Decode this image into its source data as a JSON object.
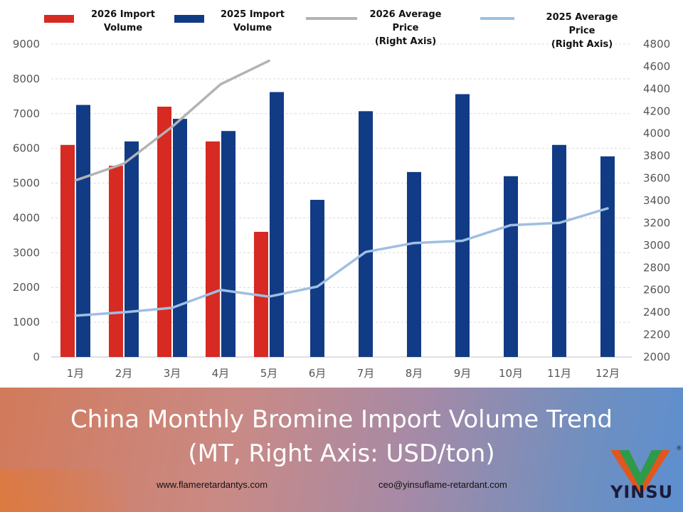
{
  "legend": [
    {
      "label": "2026 Import\nVolume",
      "color": "#d62a22",
      "kind": "bar"
    },
    {
      "label": "2025 Import\nVolume",
      "color": "#123b86",
      "kind": "bar"
    },
    {
      "label": "2026 Average Price\n(Right Axis)",
      "color": "#b3b3b3",
      "kind": "line"
    },
    {
      "label": "2025 Average Price\n(Right Axis)",
      "color": "#9fbfe3",
      "kind": "line"
    }
  ],
  "chart_data": {
    "type": "bar",
    "categories": [
      "1月",
      "2月",
      "3月",
      "4月",
      "5月",
      "6月",
      "7月",
      "8月",
      "9月",
      "10月",
      "11月",
      "12月"
    ],
    "y_left_ticks": [
      "0",
      "1000",
      "2000",
      "3000",
      "4000",
      "5000",
      "6000",
      "7000",
      "8000",
      "9000"
    ],
    "y_right_ticks": [
      "2000",
      "2200",
      "2400",
      "2600",
      "2800",
      "3000",
      "3200",
      "3400",
      "3600",
      "3800",
      "4000",
      "4200",
      "4400",
      "4600",
      "4800"
    ],
    "ylim_left": [
      0,
      9000
    ],
    "ylim_right": [
      2000,
      4800
    ],
    "grid": true,
    "series": [
      {
        "name": "2026 Import Volume",
        "type": "bar",
        "axis": "left",
        "color": "#d62a22",
        "values": [
          6100,
          5500,
          7200,
          6200,
          3600,
          null,
          null,
          null,
          null,
          null,
          null,
          null
        ]
      },
      {
        "name": "2025 Import Volume",
        "type": "bar",
        "axis": "left",
        "color": "#123b86",
        "values": [
          7250,
          6200,
          6850,
          6500,
          7620,
          4520,
          7070,
          5320,
          7560,
          5200,
          6100,
          5770
        ]
      },
      {
        "name": "2026 Average Price",
        "type": "line",
        "axis": "right",
        "color": "#b3b3b3",
        "values": [
          3580,
          3730,
          4060,
          4440,
          4650,
          null,
          null,
          null,
          null,
          null,
          null,
          null
        ]
      },
      {
        "name": "2025 Average Price",
        "type": "line",
        "axis": "right",
        "color": "#9fbfe3",
        "values": [
          2370,
          2400,
          2440,
          2600,
          2540,
          2630,
          2940,
          3020,
          3040,
          3180,
          3200,
          3330
        ]
      }
    ]
  },
  "banner": {
    "title_line1": "China Monthly Bromine Import Volume Trend",
    "title_line2": "(MT, Right Axis: USD/ton)",
    "website": "www.flameretardantys.com",
    "email": "ceo@yinsuflame-retardant.com",
    "logo_text": "YINSU",
    "logo_mark": "®"
  }
}
